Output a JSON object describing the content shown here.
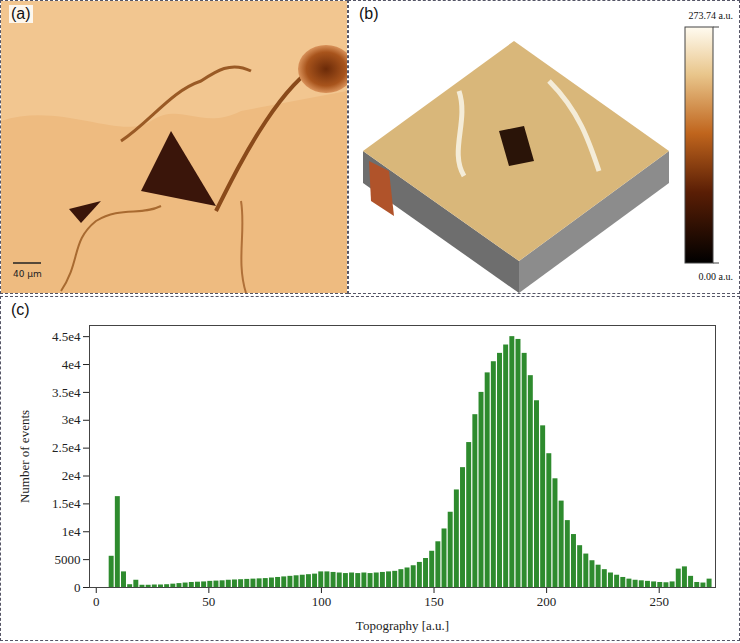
{
  "chart_data": {
    "type": "histogram",
    "panel": "(c)",
    "xlabel": "Topography [a.u.]",
    "ylabel": "Number of events",
    "color": "#2e8b2e",
    "bins": [
      0,
      2.7374,
      5.4748,
      8.2122,
      10.9496,
      13.687,
      16.4244,
      19.1618,
      21.8992,
      24.6366,
      27.374,
      30.1114,
      32.8488,
      35.5862,
      38.3236,
      41.061,
      43.7984,
      46.5358,
      49.2732,
      52.0106,
      54.748,
      57.4854,
      60.2228,
      62.9602,
      65.6976,
      68.435,
      71.1724,
      73.9098,
      76.6472,
      79.3846,
      82.122,
      84.8594,
      87.5968,
      90.3342,
      93.0716,
      95.809,
      98.5464,
      101.2838,
      104.0212,
      106.7586,
      109.496,
      112.2334,
      114.9708,
      117.7082,
      120.4456,
      123.183,
      125.9204,
      128.6578,
      131.3952,
      134.1326,
      136.87,
      139.6074,
      142.3448,
      145.0822,
      147.8196,
      150.557,
      153.2944,
      156.0318,
      158.7692,
      161.5066,
      164.244,
      166.9814,
      169.7188,
      172.4562,
      175.1936,
      177.931,
      180.6684,
      183.4058,
      186.1432,
      188.8806,
      191.618,
      194.3554,
      197.0928,
      199.8302,
      202.5676,
      205.305,
      208.0424,
      210.7798,
      213.5172,
      216.2546,
      218.992,
      221.7294,
      224.4668,
      227.2042,
      229.9416,
      232.679,
      235.4164,
      238.1538,
      240.8912,
      243.6286,
      246.366,
      249.1034,
      251.8408,
      254.5782,
      257.3156,
      260.053,
      262.7904,
      265.5278,
      268.2652,
      271.0026,
      273.74
    ],
    "values": [
      0,
      0,
      5600,
      16300,
      2800,
      500,
      1300,
      400,
      400,
      450,
      450,
      500,
      600,
      700,
      800,
      900,
      950,
      1000,
      1100,
      1150,
      1200,
      1300,
      1350,
      1400,
      1450,
      1500,
      1550,
      1600,
      1700,
      1800,
      1900,
      2000,
      2100,
      2200,
      2300,
      2400,
      2800,
      2800,
      2700,
      2600,
      2500,
      2600,
      2500,
      2600,
      2500,
      2600,
      2700,
      2800,
      2900,
      3200,
      3500,
      3900,
      4500,
      5200,
      6500,
      8200,
      10500,
      13500,
      17500,
      21500,
      26000,
      31000,
      35000,
      38500,
      40500,
      42000,
      43500,
      45000,
      44500,
      42000,
      38000,
      33500,
      29000,
      24000,
      19500,
      15500,
      12000,
      9500,
      7500,
      6000,
      4800,
      4000,
      3200,
      2600,
      2200,
      1800,
      1500,
      1300,
      1200,
      1100,
      1000,
      900,
      850,
      1000,
      3300,
      3700,
      2000,
      900,
      800,
      1500
    ],
    "xlim": [
      -3,
      275
    ],
    "ylim": [
      0,
      47000
    ],
    "xticks": [
      0,
      50,
      100,
      150,
      200,
      250
    ],
    "yticks": [
      0,
      5000,
      {
        "value": 10000,
        "label": "1e4"
      },
      {
        "value": 15000,
        "label": "1.5e4"
      },
      {
        "value": 20000,
        "label": "2e4"
      },
      {
        "value": 25000,
        "label": "2.5e4"
      },
      {
        "value": 30000,
        "label": "3e4"
      },
      {
        "value": 35000,
        "label": "3.5e4"
      },
      {
        "value": 40000,
        "label": "4e4"
      },
      {
        "value": 45000,
        "label": "4.5e4"
      }
    ],
    "grid": false
  },
  "panel_a": {
    "panel": "(a)",
    "scale_bar": "40 μm"
  },
  "panel_b": {
    "panel": "(b)",
    "color_bar": {
      "range": [
        0,
        273.74
      ],
      "ticks": [
        {
          "value": 273.74,
          "label": "273.74 a.u."
        },
        {
          "value": 0,
          "label": "0.00 a.u."
        }
      ]
    }
  }
}
